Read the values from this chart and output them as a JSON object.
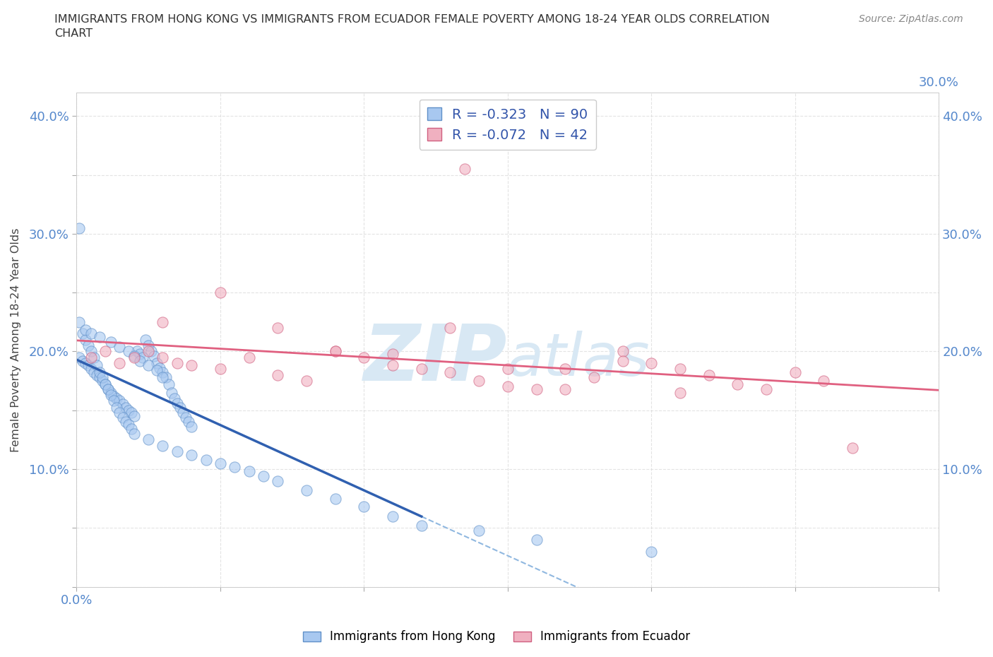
{
  "title_line1": "IMMIGRANTS FROM HONG KONG VS IMMIGRANTS FROM ECUADOR FEMALE POVERTY AMONG 18-24 YEAR OLDS CORRELATION",
  "title_line2": "CHART",
  "source": "Source: ZipAtlas.com",
  "ylabel": "Female Poverty Among 18-24 Year Olds",
  "xlim": [
    0.0,
    0.3
  ],
  "ylim": [
    0.0,
    0.42
  ],
  "x_ticks": [
    0.0,
    0.05,
    0.1,
    0.15,
    0.2,
    0.25,
    0.3
  ],
  "y_ticks": [
    0.0,
    0.05,
    0.1,
    0.15,
    0.2,
    0.25,
    0.3,
    0.35,
    0.4
  ],
  "color_hk": "#a8c8f0",
  "color_hk_edge": "#6090c8",
  "color_hk_line": "#3060b0",
  "color_ec": "#f0b0c0",
  "color_ec_edge": "#d06080",
  "color_ec_line": "#e06080",
  "color_dash": "#90b8e0",
  "watermark_color": "#d8e8f4",
  "background": "#ffffff",
  "grid_color": "#dddddd",
  "tick_color": "#5588cc",
  "R_hk": -0.323,
  "N_hk": 90,
  "R_ec": -0.072,
  "N_ec": 42,
  "legend_hk": "Immigrants from Hong Kong",
  "legend_ec": "Immigrants from Ecuador",
  "hk_x": [
    0.001,
    0.002,
    0.003,
    0.004,
    0.005,
    0.006,
    0.007,
    0.008,
    0.009,
    0.01,
    0.011,
    0.012,
    0.013,
    0.014,
    0.015,
    0.016,
    0.017,
    0.018,
    0.019,
    0.02,
    0.021,
    0.022,
    0.023,
    0.024,
    0.025,
    0.026,
    0.027,
    0.028,
    0.029,
    0.03,
    0.031,
    0.032,
    0.033,
    0.034,
    0.035,
    0.036,
    0.037,
    0.038,
    0.039,
    0.04,
    0.001,
    0.002,
    0.003,
    0.004,
    0.005,
    0.006,
    0.007,
    0.008,
    0.009,
    0.01,
    0.011,
    0.012,
    0.013,
    0.014,
    0.015,
    0.016,
    0.017,
    0.018,
    0.019,
    0.02,
    0.025,
    0.03,
    0.035,
    0.04,
    0.045,
    0.05,
    0.055,
    0.06,
    0.065,
    0.07,
    0.08,
    0.09,
    0.1,
    0.11,
    0.12,
    0.003,
    0.005,
    0.008,
    0.012,
    0.015,
    0.018,
    0.02,
    0.022,
    0.025,
    0.028,
    0.03,
    0.001,
    0.14,
    0.16,
    0.2
  ],
  "hk_y": [
    0.195,
    0.192,
    0.19,
    0.188,
    0.185,
    0.182,
    0.18,
    0.178,
    0.175,
    0.172,
    0.168,
    0.165,
    0.162,
    0.16,
    0.158,
    0.155,
    0.152,
    0.15,
    0.148,
    0.145,
    0.2,
    0.198,
    0.195,
    0.21,
    0.205,
    0.2,
    0.196,
    0.19,
    0.186,
    0.182,
    0.178,
    0.172,
    0.165,
    0.16,
    0.156,
    0.152,
    0.148,
    0.144,
    0.14,
    0.136,
    0.225,
    0.215,
    0.21,
    0.205,
    0.2,
    0.195,
    0.188,
    0.182,
    0.178,
    0.172,
    0.168,
    0.163,
    0.158,
    0.152,
    0.148,
    0.144,
    0.14,
    0.138,
    0.134,
    0.13,
    0.125,
    0.12,
    0.115,
    0.112,
    0.108,
    0.105,
    0.102,
    0.098,
    0.094,
    0.09,
    0.082,
    0.075,
    0.068,
    0.06,
    0.052,
    0.218,
    0.215,
    0.212,
    0.208,
    0.204,
    0.2,
    0.196,
    0.192,
    0.188,
    0.184,
    0.178,
    0.305,
    0.048,
    0.04,
    0.03
  ],
  "ec_x": [
    0.005,
    0.01,
    0.015,
    0.02,
    0.025,
    0.03,
    0.035,
    0.04,
    0.05,
    0.06,
    0.07,
    0.08,
    0.09,
    0.1,
    0.11,
    0.12,
    0.13,
    0.14,
    0.15,
    0.16,
    0.17,
    0.18,
    0.19,
    0.2,
    0.21,
    0.22,
    0.23,
    0.24,
    0.25,
    0.26,
    0.03,
    0.05,
    0.07,
    0.09,
    0.11,
    0.13,
    0.15,
    0.17,
    0.19,
    0.21,
    0.27,
    0.135
  ],
  "ec_y": [
    0.195,
    0.2,
    0.19,
    0.195,
    0.2,
    0.195,
    0.19,
    0.188,
    0.185,
    0.195,
    0.18,
    0.175,
    0.2,
    0.195,
    0.188,
    0.185,
    0.182,
    0.175,
    0.17,
    0.168,
    0.185,
    0.178,
    0.2,
    0.19,
    0.185,
    0.18,
    0.172,
    0.168,
    0.182,
    0.175,
    0.225,
    0.25,
    0.22,
    0.2,
    0.198,
    0.22,
    0.185,
    0.168,
    0.192,
    0.165,
    0.118,
    0.355
  ]
}
